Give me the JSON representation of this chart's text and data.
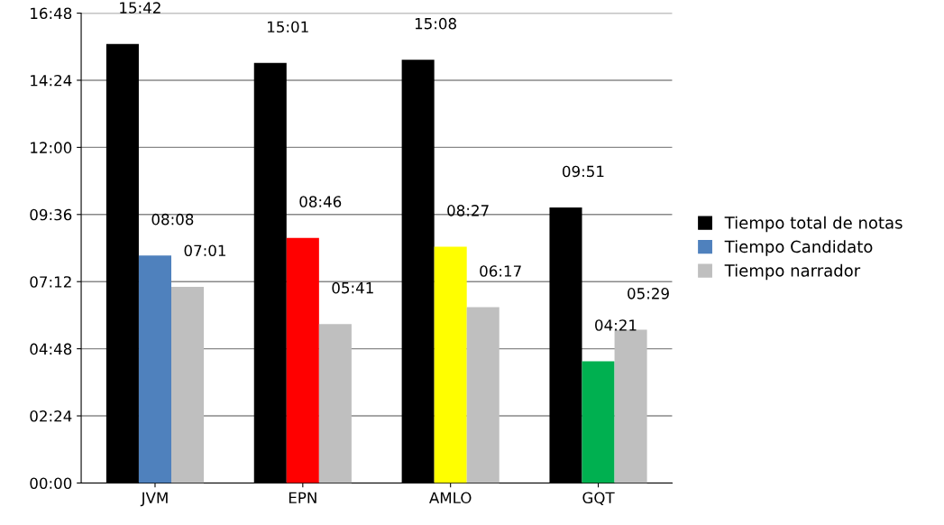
{
  "chart_data": {
    "type": "bar",
    "categories": [
      "JVM",
      "EPN",
      "AMLO",
      "GQT"
    ],
    "series": [
      {
        "name": "Tiempo total de notas",
        "color": "#000000",
        "values": [
          942,
          901,
          908,
          591
        ],
        "value_labels": [
          "15:42",
          "15:01",
          "15:08",
          "09:51"
        ]
      },
      {
        "name": "Tiempo Candidato",
        "color": "#4f81bd",
        "colors": [
          "#4f81bd",
          "#ff0000",
          "#ffff00",
          "#00b050"
        ],
        "values": [
          488,
          526,
          507,
          261
        ],
        "value_labels": [
          "08:08",
          "08:46",
          "08:27",
          "04:21"
        ]
      },
      {
        "name": "Tiempo narrador",
        "color": "#bfbfbf",
        "values": [
          421,
          341,
          377,
          329
        ],
        "value_labels": [
          "07:01",
          "05:41",
          "06:17",
          "05:29"
        ]
      }
    ],
    "ylim": [
      0,
      1008
    ],
    "yticks": [
      {
        "value": 0,
        "label": "00:00"
      },
      {
        "value": 144,
        "label": "02:24"
      },
      {
        "value": 288,
        "label": "04:48"
      },
      {
        "value": 432,
        "label": "07:12"
      },
      {
        "value": 576,
        "label": "09:36"
      },
      {
        "value": 720,
        "label": "12:00"
      },
      {
        "value": 864,
        "label": "14:24"
      },
      {
        "value": 1008,
        "label": "16:48"
      }
    ],
    "grid": "y",
    "legend": "right"
  }
}
